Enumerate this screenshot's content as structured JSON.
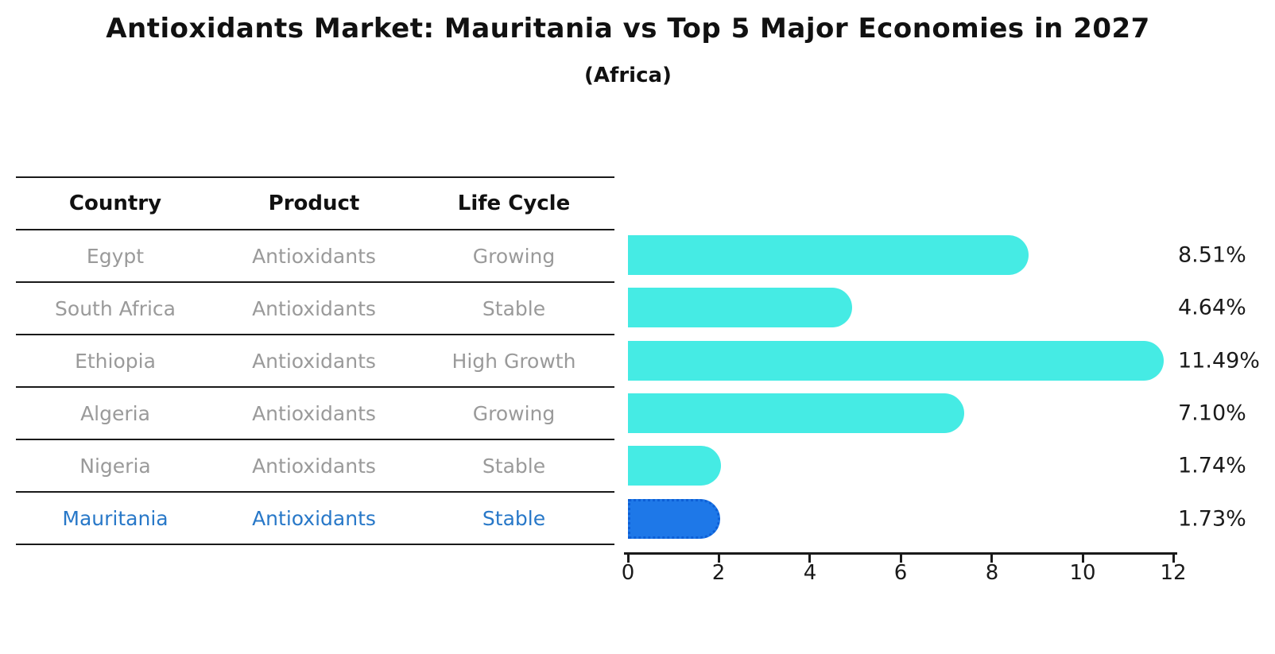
{
  "title": "Antioxidants Market: Mauritania vs Top 5 Major Economies in 2027",
  "subtitle": "(Africa)",
  "table": {
    "headers": {
      "country": "Country",
      "product": "Product",
      "life_cycle": "Life Cycle"
    },
    "rows": [
      {
        "country": "Egypt",
        "product": "Antioxidants",
        "life_cycle": "Growing"
      },
      {
        "country": "South Africa",
        "product": "Antioxidants",
        "life_cycle": "Stable"
      },
      {
        "country": "Ethiopia",
        "product": "Antioxidants",
        "life_cycle": "High Growth"
      },
      {
        "country": "Algeria",
        "product": "Antioxidants",
        "life_cycle": "Growing"
      },
      {
        "country": "Nigeria",
        "product": "Antioxidants",
        "life_cycle": "Stable"
      },
      {
        "country": "Mauritania",
        "product": "Antioxidants",
        "life_cycle": "Stable"
      }
    ],
    "highlighted_country": "Mauritania"
  },
  "chart_data": {
    "type": "bar",
    "orientation": "horizontal",
    "title": "Antioxidants Market: Mauritania vs Top 5 Major Economies in 2027",
    "subtitle": "(Africa)",
    "categories": [
      "Egypt",
      "South Africa",
      "Ethiopia",
      "Algeria",
      "Nigeria",
      "Mauritania"
    ],
    "values": [
      8.51,
      4.64,
      11.49,
      7.1,
      1.74,
      1.73
    ],
    "value_labels": [
      "8.51%",
      "4.64%",
      "11.49%",
      "7.10%",
      "1.74%",
      "1.73%"
    ],
    "xlabel": "",
    "ylabel": "",
    "xlim": [
      0,
      12
    ],
    "x_ticks": [
      "0",
      "2",
      "4",
      "6",
      "8",
      "10",
      "12"
    ],
    "grid": false,
    "legend": false,
    "highlight_index": 5,
    "bar_color": "#45ebe4",
    "highlight_bar_color": "#1e78e8"
  },
  "colors": {
    "bar": "#45ebe4",
    "highlight_bar": "#1e78e8",
    "highlight_text": "#2878c8",
    "muted_text": "#9a9a9a",
    "heading_text": "#111111",
    "axis": "#1a1a1a",
    "background": "#ffffff"
  }
}
